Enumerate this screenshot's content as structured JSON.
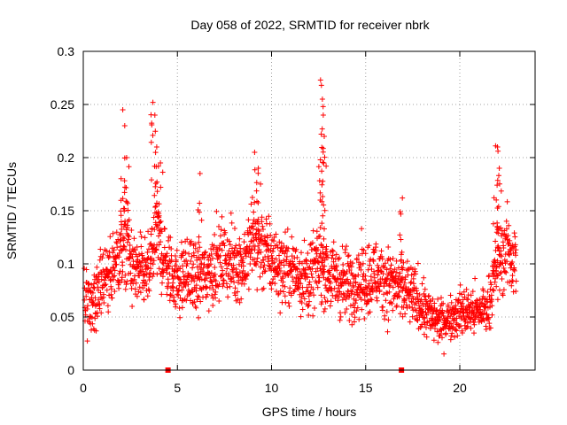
{
  "chart_data": {
    "type": "scatter",
    "title": "Day 058 of 2022, SRMTID for receiver nbrk",
    "xlabel": "GPS time / hours",
    "ylabel": "SRMTID / TECUs",
    "xlim": [
      0,
      24
    ],
    "ylim": [
      0,
      0.3
    ],
    "xticks": [
      0,
      5,
      10,
      15,
      20
    ],
    "yticks": [
      0,
      0.05,
      0.1,
      0.15,
      0.2,
      0.25,
      0.3
    ],
    "ytick_labels": [
      "0",
      "0.05",
      "0.1",
      "0.15",
      "0.2",
      "0.25",
      "0.3"
    ],
    "grid": true,
    "marker": "+",
    "color": "#ff0000",
    "envelope": {
      "description": "approximate typical SRMTID level (TECU) vs GPS hour; ~2000 points scattered around this level",
      "x": [
        0,
        0.5,
        1,
        1.5,
        2,
        2.3,
        2.6,
        3,
        3.5,
        3.8,
        4.2,
        4.5,
        5,
        5.5,
        6,
        6.5,
        7,
        7.5,
        8,
        8.5,
        9,
        9.5,
        10,
        10.5,
        11,
        11.5,
        12,
        12.5,
        13,
        13.5,
        14,
        14.5,
        15,
        15.5,
        16,
        16.5,
        17,
        17.5,
        18,
        18.5,
        19,
        19.5,
        20,
        20.5,
        21,
        21.5,
        22,
        22.5,
        23
      ],
      "y": [
        0.075,
        0.06,
        0.08,
        0.095,
        0.11,
        0.12,
        0.095,
        0.09,
        0.09,
        0.13,
        0.11,
        0.095,
        0.085,
        0.09,
        0.085,
        0.09,
        0.1,
        0.105,
        0.1,
        0.1,
        0.12,
        0.115,
        0.105,
        0.095,
        0.095,
        0.09,
        0.085,
        0.1,
        0.09,
        0.085,
        0.08,
        0.085,
        0.085,
        0.09,
        0.085,
        0.08,
        0.075,
        0.07,
        0.06,
        0.05,
        0.045,
        0.05,
        0.055,
        0.055,
        0.055,
        0.06,
        0.1,
        0.115,
        0.1
      ],
      "spread": [
        0.025,
        0.025,
        0.03,
        0.03,
        0.035,
        0.04,
        0.03,
        0.03,
        0.03,
        0.04,
        0.035,
        0.03,
        0.03,
        0.03,
        0.03,
        0.03,
        0.03,
        0.03,
        0.03,
        0.03,
        0.035,
        0.035,
        0.03,
        0.03,
        0.03,
        0.03,
        0.03,
        0.03,
        0.03,
        0.03,
        0.03,
        0.03,
        0.03,
        0.03,
        0.03,
        0.03,
        0.03,
        0.025,
        0.025,
        0.02,
        0.018,
        0.018,
        0.02,
        0.02,
        0.02,
        0.02,
        0.03,
        0.035,
        0.035
      ]
    },
    "peaks": [
      {
        "x": 2.1,
        "y": 0.245
      },
      {
        "x": 2.2,
        "y": 0.23
      },
      {
        "x": 2.3,
        "y": 0.2
      },
      {
        "x": 3.7,
        "y": 0.252
      },
      {
        "x": 3.8,
        "y": 0.24
      },
      {
        "x": 3.9,
        "y": 0.21
      },
      {
        "x": 4.1,
        "y": 0.195
      },
      {
        "x": 9.1,
        "y": 0.205
      },
      {
        "x": 9.3,
        "y": 0.19
      },
      {
        "x": 12.6,
        "y": 0.273
      },
      {
        "x": 12.65,
        "y": 0.268
      },
      {
        "x": 12.7,
        "y": 0.255
      },
      {
        "x": 12.75,
        "y": 0.24
      },
      {
        "x": 12.8,
        "y": 0.22
      },
      {
        "x": 21.9,
        "y": 0.211
      },
      {
        "x": 22.0,
        "y": 0.21
      },
      {
        "x": 22.1,
        "y": 0.19
      },
      {
        "x": 16.95,
        "y": 0.162
      },
      {
        "x": 6.2,
        "y": 0.185
      }
    ],
    "zero_markers": [
      {
        "x": 4.5,
        "y": 0
      },
      {
        "x": 16.9,
        "y": 0
      }
    ]
  }
}
